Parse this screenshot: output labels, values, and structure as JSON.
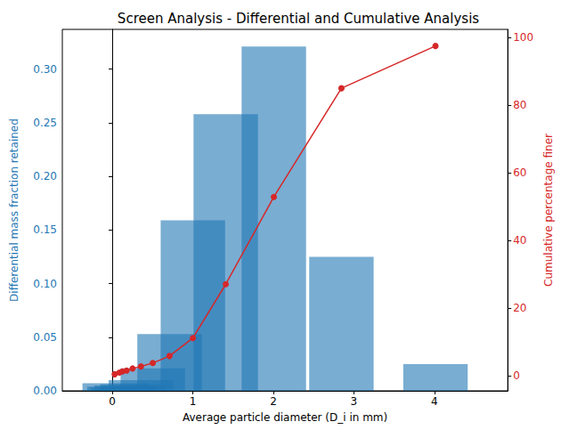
{
  "chart_data": {
    "type": "bar",
    "title": "Screen Analysis - Differential and Cumulative Analysis",
    "x_label": "Average particle diameter (D_i in mm)",
    "y_label": "Differential mass fraction retained",
    "y2_label": "Cumulative percentage finer",
    "x": [
      0.03,
      0.089,
      0.126,
      0.178,
      0.252,
      0.356,
      0.503,
      0.711,
      1.001,
      1.409,
      2.006,
      2.845,
      4.013
    ],
    "series": [
      {
        "type": "bar",
        "color": "#1f77b4",
        "values": [
          0.007,
          0.004,
          0.003,
          0.005,
          0.006,
          0.01,
          0.021,
          0.053,
          0.159,
          0.258,
          0.321,
          0.125,
          0.025
        ]
      },
      {
        "type": "line",
        "axis": "y2",
        "color": "#d62728",
        "marker": "circle",
        "line_style": "solid",
        "values": [
          0.5,
          1.0,
          1.3,
          1.6,
          2.2,
          2.8,
          3.8,
          5.9,
          11.2,
          27.1,
          52.9,
          85.0,
          97.5
        ]
      }
    ],
    "xlim": [
      -0.62,
      4.91
    ],
    "xticks": [
      0,
      1,
      2,
      3,
      4
    ],
    "ylim": [
      0,
      0.337
    ],
    "yticks": [
      {
        "value": 0,
        "label": "0.00"
      },
      {
        "value": 0.05,
        "label": "0.05"
      },
      {
        "value": 0.1,
        "label": "0.10"
      },
      {
        "value": 0.15,
        "label": "0.15"
      },
      {
        "value": 0.2,
        "label": "0.20"
      },
      {
        "value": 0.25,
        "label": "0.25"
      },
      {
        "value": 0.3,
        "label": "0.30"
      }
    ],
    "y2lim": [
      -4.4,
      102.4
    ],
    "y2ticks": [
      0,
      20,
      40,
      60,
      80,
      100
    ],
    "grid": false
  }
}
